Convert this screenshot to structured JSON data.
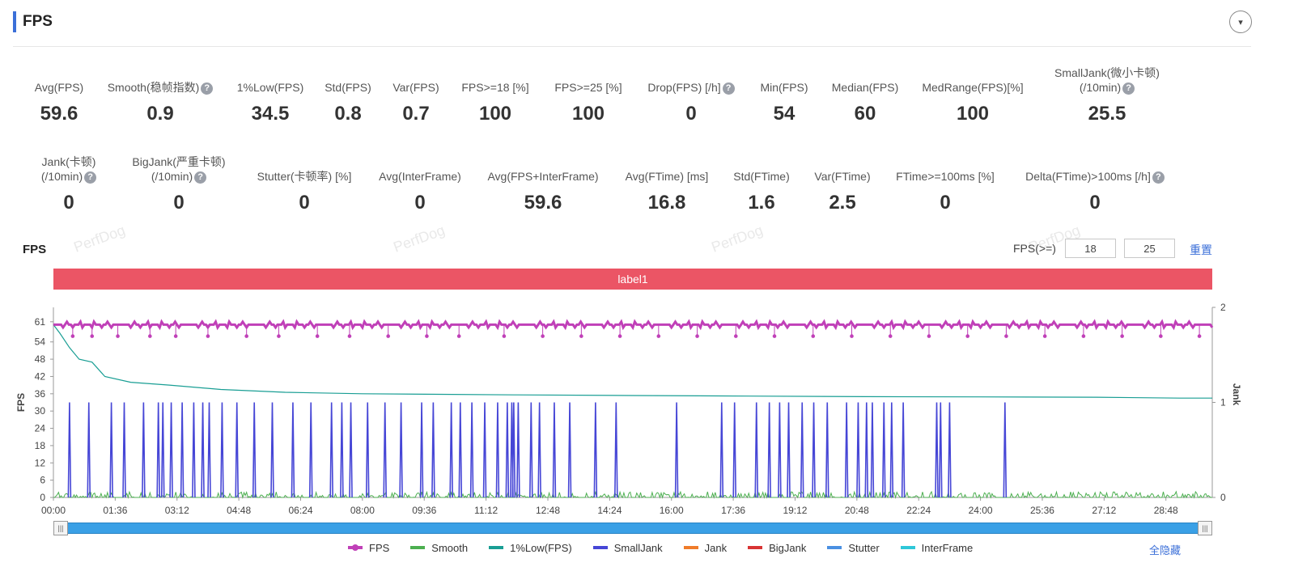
{
  "section": {
    "title": "FPS",
    "collapse_icon": "▾"
  },
  "metrics_row1": [
    {
      "label": "Avg(FPS)",
      "value": "59.6",
      "help": false
    },
    {
      "label": "Smooth(稳帧指数)",
      "value": "0.9",
      "help": true
    },
    {
      "label": "1%Low(FPS)",
      "value": "34.5",
      "help": false
    },
    {
      "label": "Std(FPS)",
      "value": "0.8",
      "help": false
    },
    {
      "label": "Var(FPS)",
      "value": "0.7",
      "help": false
    },
    {
      "label": "FPS>=18 [%]",
      "value": "100",
      "help": false
    },
    {
      "label": "FPS>=25 [%]",
      "value": "100",
      "help": false
    },
    {
      "label": "Drop(FPS) [/h]",
      "value": "0",
      "help": true
    },
    {
      "label": "Min(FPS)",
      "value": "54",
      "help": false
    },
    {
      "label": "Median(FPS)",
      "value": "60",
      "help": false
    },
    {
      "label": "MedRange(FPS)[%]",
      "value": "100",
      "help": false
    },
    {
      "label": "SmallJank(微小卡顿)",
      "label2": "(/10min)",
      "value": "25.5",
      "help": true
    }
  ],
  "metrics_row2": [
    {
      "label": "Jank(卡顿)",
      "label2": "(/10min)",
      "value": "0",
      "help": true
    },
    {
      "label": "BigJank(严重卡顿)",
      "label2": "(/10min)",
      "value": "0",
      "help": true
    },
    {
      "label": "Stutter(卡顿率) [%]",
      "value": "0",
      "help": false
    },
    {
      "label": "Avg(InterFrame)",
      "value": "0",
      "help": false
    },
    {
      "label": "Avg(FPS+InterFrame)",
      "value": "59.6",
      "help": false
    },
    {
      "label": "Avg(FTime) [ms]",
      "value": "16.8",
      "help": false
    },
    {
      "label": "Std(FTime)",
      "value": "1.6",
      "help": false
    },
    {
      "label": "Var(FTime)",
      "value": "2.5",
      "help": false
    },
    {
      "label": "FTime>=100ms [%]",
      "value": "0",
      "help": false
    },
    {
      "label": "Delta(FTime)>100ms [/h]",
      "value": "0",
      "help": true
    }
  ],
  "watermark_text": "PerfDog",
  "chart_header": {
    "title": "FPS",
    "threshold_label": "FPS(>=)",
    "threshold_1": "18",
    "threshold_2": "25",
    "reset_label": "重置"
  },
  "label_band": {
    "text": "label1",
    "color": "#eb5565"
  },
  "legend": {
    "items": [
      {
        "name": "FPS",
        "color": "#c040b8",
        "marker": true
      },
      {
        "name": "Smooth",
        "color": "#4caf50",
        "marker": false
      },
      {
        "name": "1%Low(FPS)",
        "color": "#199e94",
        "marker": false
      },
      {
        "name": "SmallJank",
        "color": "#4646d6",
        "marker": false
      },
      {
        "name": "Jank",
        "color": "#f07c2a",
        "marker": false
      },
      {
        "name": "BigJank",
        "color": "#d83434",
        "marker": false
      },
      {
        "name": "Stutter",
        "color": "#4a90e2",
        "marker": false
      },
      {
        "name": "InterFrame",
        "color": "#2ec7d8",
        "marker": false
      }
    ],
    "hide_all_label": "全隐藏"
  },
  "slider": {
    "handle_icon": "|||"
  },
  "chart_data": {
    "type": "line",
    "xlabel": "",
    "ylabel": "FPS",
    "y2label": "Jank",
    "xlim_seconds": [
      0,
      1800
    ],
    "ylim": [
      0,
      66
    ],
    "y2lim": [
      0,
      2
    ],
    "x_tick_labels": [
      "00:00",
      "01:36",
      "03:12",
      "04:48",
      "06:24",
      "08:00",
      "09:36",
      "11:12",
      "12:48",
      "14:24",
      "16:00",
      "17:36",
      "19:12",
      "20:48",
      "22:24",
      "24:00",
      "25:36",
      "27:12",
      "28:48"
    ],
    "y_ticks": [
      0,
      6,
      12,
      18,
      24,
      30,
      36,
      42,
      48,
      54,
      61
    ],
    "y2_ticks": [
      0,
      1,
      2
    ],
    "grid": false,
    "legend_position": "bottom",
    "series": [
      {
        "name": "FPS",
        "axis": "left",
        "baseline": 60,
        "min": 54,
        "max": 61,
        "dip_times_s": [
          30,
          60,
          100,
          150,
          190,
          240,
          300,
          350,
          410,
          460,
          520,
          580,
          630,
          700,
          760,
          820,
          880,
          940,
          1000,
          1060,
          1120,
          1180,
          1240,
          1300,
          1360,
          1420,
          1480,
          1540,
          1600,
          1660,
          1720,
          1780
        ]
      },
      {
        "name": "1%Low(FPS)",
        "axis": "left",
        "x": [
          0,
          10,
          25,
          40,
          60,
          80,
          120,
          180,
          260,
          360,
          480,
          600,
          720,
          900,
          1080,
          1260,
          1440,
          1620,
          1750,
          1800
        ],
        "y": [
          60,
          57,
          52,
          48,
          47,
          42,
          40,
          39,
          37.5,
          36.5,
          36,
          35.8,
          35.6,
          35.4,
          35.2,
          35,
          34.9,
          34.8,
          34.5,
          34.5
        ]
      },
      {
        "name": "SmallJank",
        "axis": "right",
        "value": 1,
        "spike_times_s": [
          25,
          55,
          90,
          110,
          140,
          163,
          170,
          183,
          200,
          218,
          232,
          242,
          262,
          285,
          312,
          340,
          372,
          400,
          432,
          448,
          462,
          488,
          515,
          540,
          572,
          590,
          618,
          632,
          650,
          670,
          690,
          705,
          712,
          715,
          722,
          742,
          755,
          778,
          802,
          842,
          874,
          968,
          1038,
          1058,
          1092,
          1112,
          1128,
          1142,
          1163,
          1181,
          1202,
          1232,
          1250,
          1263,
          1272,
          1290,
          1302,
          1320,
          1372,
          1378,
          1392,
          1478
        ]
      },
      {
        "name": "Smooth",
        "axis": "left",
        "range": [
          0,
          2
        ]
      }
    ]
  }
}
